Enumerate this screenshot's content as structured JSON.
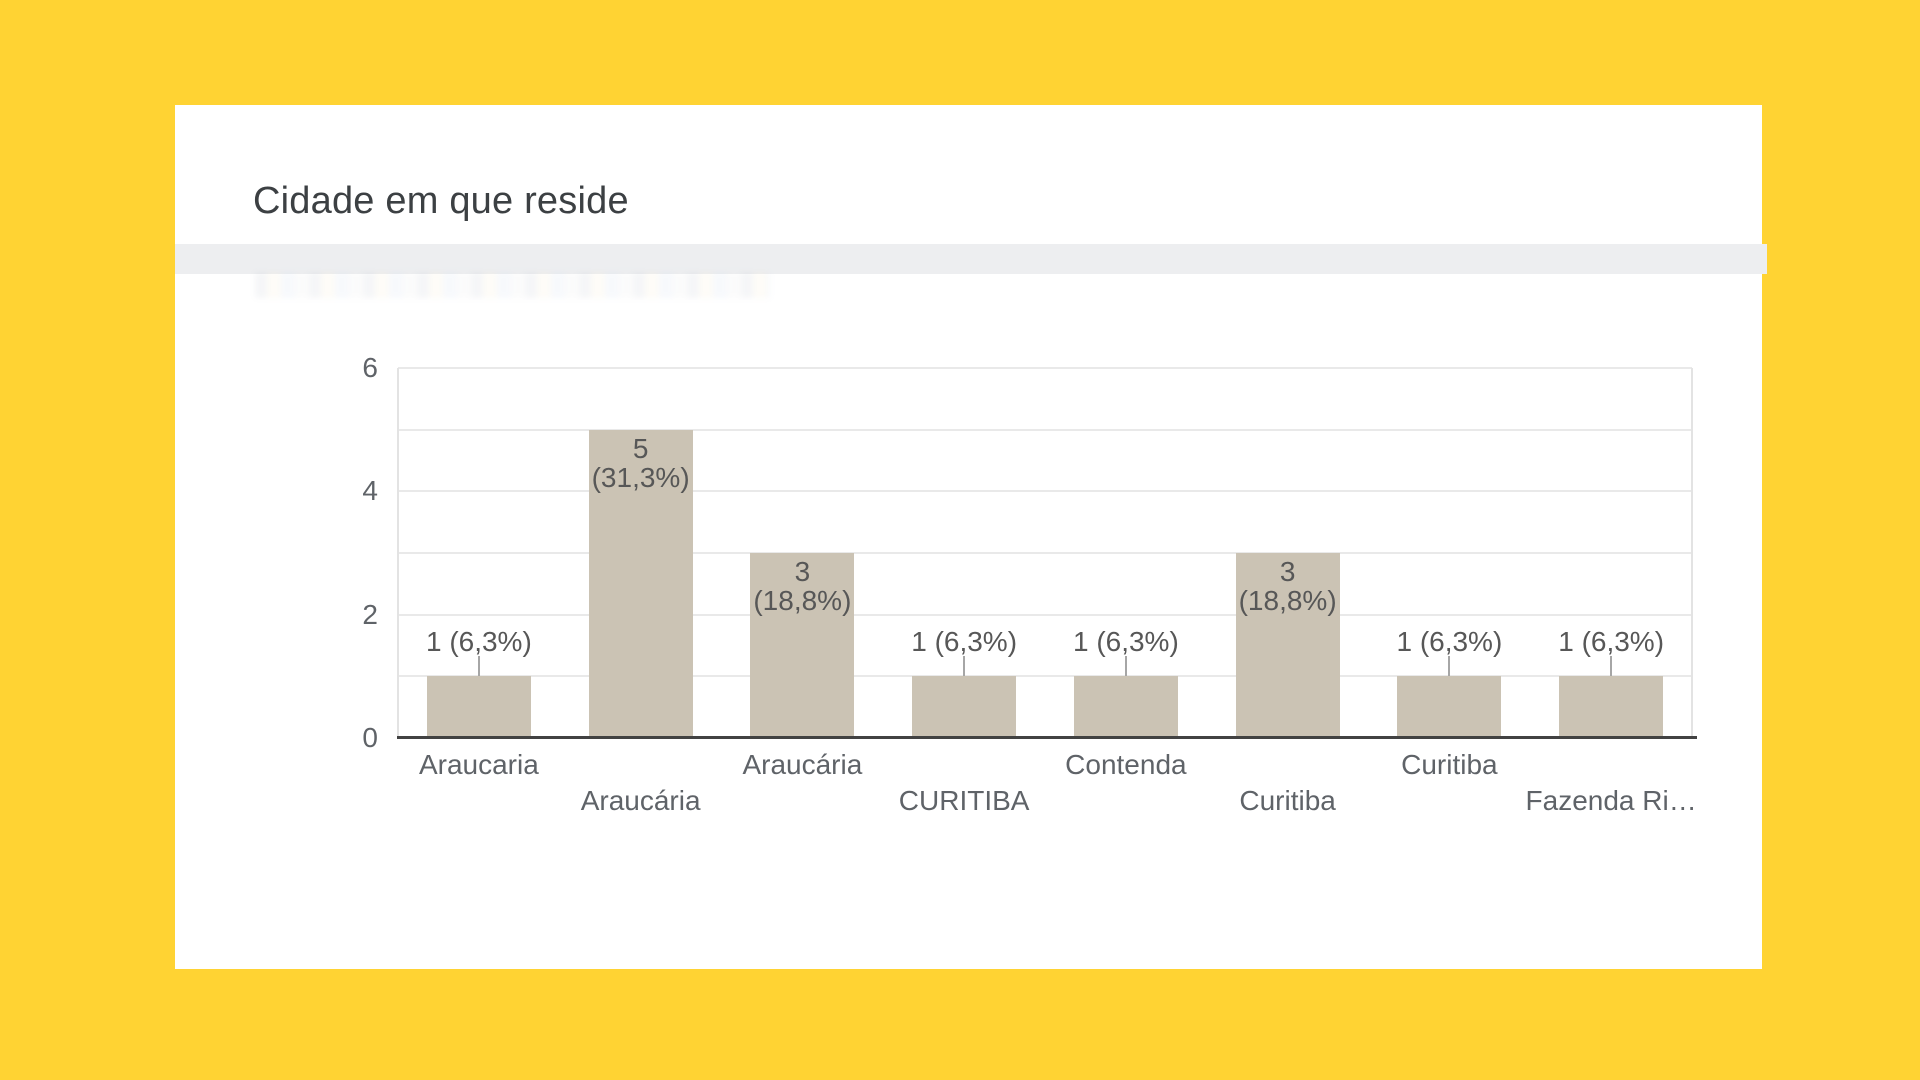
{
  "window": {
    "background_color": "#FFD333"
  },
  "card": {
    "background_color": "#FFFFFF"
  },
  "header": {
    "title": "Cidade em que reside"
  },
  "divider": {
    "color": "#EDEEF0"
  },
  "chart_data": {
    "type": "bar",
    "title": "Cidade em que reside",
    "categories": [
      "Araucaria",
      "Araucária",
      "Araucária",
      "CURITIBA",
      "Contenda",
      "Curitiba",
      "Curitiba",
      "Fazenda Ri…"
    ],
    "values": [
      1,
      5,
      3,
      1,
      1,
      3,
      1,
      1
    ],
    "percent_labels": [
      "6,3%",
      "31,3%",
      "18,8%",
      "6,3%",
      "6,3%",
      "18,8%",
      "6,3%",
      "6,3%"
    ],
    "label_lines": [
      [
        "1 (6,3%)"
      ],
      [
        "5",
        "(31,3%)"
      ],
      [
        "3",
        "(18,8%)"
      ],
      [
        "1 (6,3%)"
      ],
      [
        "1 (6,3%)"
      ],
      [
        "3",
        "(18,8%)"
      ],
      [
        "1 (6,3%)"
      ],
      [
        "1 (6,3%)"
      ]
    ],
    "label_placement": [
      "outside",
      "inside",
      "inside",
      "outside",
      "outside",
      "inside",
      "outside",
      "outside"
    ],
    "xlabel": "",
    "ylabel": "",
    "ylim": [
      0,
      6
    ],
    "y_ticks": [
      0,
      2,
      4,
      6
    ],
    "grid": true,
    "legend": "none",
    "bar_color": "#CBC3B4",
    "gridline_color": "#E9E9E9",
    "axis_line_color": "#424242",
    "tick_text_color": "#5F6368",
    "label_text_color": "#575757",
    "connector_color": "#A6A6A6"
  }
}
